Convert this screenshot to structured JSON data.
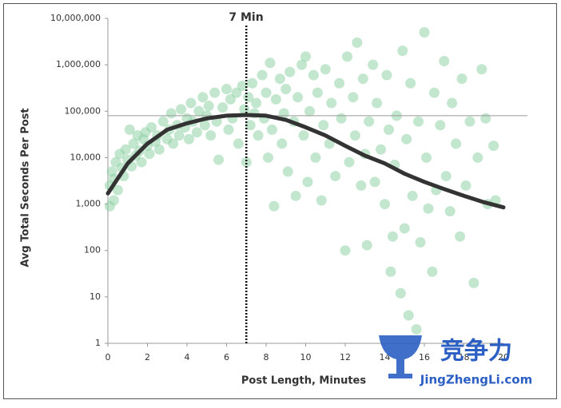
{
  "chart_data": {
    "type": "scatter",
    "xlabel": "Post Length, Minutes",
    "ylabel": "Avg Total Seconds Per Post",
    "log_y": true,
    "xlim": [
      0,
      20
    ],
    "xticks": [
      0,
      2,
      4,
      6,
      8,
      10,
      12,
      14,
      16,
      18,
      20
    ],
    "ylim": [
      1,
      10000000
    ],
    "yticks": [
      1,
      10,
      100,
      {
        "value": 1000,
        "label": "1,000"
      },
      {
        "value": 10000,
        "label": "10,000"
      },
      {
        "value": 100000,
        "label": "100,000"
      },
      {
        "value": 1000000,
        "label": "1,000,000"
      },
      {
        "value": 10000000,
        "label": "10,000,000"
      }
    ],
    "color": "#8fd1a6",
    "x": [
      0.1,
      0.1,
      0.2,
      0.3,
      0.3,
      0.4,
      0.5,
      0.6,
      0.7,
      0.8,
      0.9,
      1.0,
      1.1,
      1.2,
      1.3,
      1.4,
      1.5,
      1.6,
      1.7,
      1.8,
      1.9,
      2.0,
      2.1,
      2.2,
      2.4,
      2.5,
      2.6,
      2.8,
      3.0,
      3.1,
      3.2,
      3.3,
      3.5,
      3.6,
      3.7,
      3.9,
      4.0,
      4.1,
      4.2,
      4.3,
      4.5,
      4.6,
      4.8,
      4.9,
      5.0,
      5.1,
      5.2,
      5.4,
      5.5,
      5.6,
      5.8,
      6.0,
      6.1,
      6.2,
      6.3,
      6.5,
      6.6,
      6.8,
      6.9,
      7.0,
      7.1,
      7.2,
      7.3,
      7.4,
      7.5,
      7.6,
      7.8,
      7.9,
      8.0,
      8.1,
      8.2,
      8.3,
      8.4,
      8.5,
      8.7,
      8.8,
      8.9,
      9.0,
      9.1,
      9.2,
      9.4,
      9.5,
      9.6,
      9.8,
      9.9,
      10.0,
      10.1,
      10.2,
      10.4,
      10.5,
      10.6,
      10.8,
      10.9,
      11.0,
      11.2,
      11.3,
      11.5,
      11.7,
      11.8,
      12.0,
      12.1,
      12.2,
      12.4,
      12.5,
      12.6,
      12.8,
      12.9,
      13.0,
      13.1,
      13.2,
      13.4,
      13.5,
      13.6,
      13.8,
      14.0,
      14.1,
      14.2,
      14.3,
      14.4,
      14.5,
      14.6,
      14.8,
      14.9,
      15.0,
      15.1,
      15.2,
      15.3,
      15.4,
      15.6,
      15.7,
      15.8,
      16.0,
      16.1,
      16.2,
      16.4,
      16.5,
      16.6,
      16.8,
      17.0,
      17.1,
      17.3,
      17.4,
      17.6,
      17.8,
      17.9,
      18.1,
      18.3,
      18.5,
      18.7,
      18.9,
      19.1,
      19.2,
      19.5,
      19.6
    ],
    "values": [
      900,
      2500,
      5000,
      1200,
      3500,
      8000,
      2000,
      12000,
      6000,
      4000,
      15000,
      9000,
      40000,
      6500,
      20000,
      11000,
      30000,
      14000,
      8000,
      25000,
      35000,
      18000,
      12000,
      45000,
      22000,
      30000,
      15000,
      60000,
      25000,
      40000,
      90000,
      20000,
      50000,
      30000,
      110000,
      45000,
      70000,
      25000,
      150000,
      60000,
      35000,
      100000,
      200000,
      50000,
      80000,
      130000,
      30000,
      250000,
      60000,
      9000,
      120000,
      300000,
      40000,
      180000,
      70000,
      250000,
      20000,
      350000,
      110000,
      8000,
      200000,
      50000,
      400000,
      90000,
      150000,
      30000,
      600000,
      70000,
      250000,
      10000,
      1100000,
      40000,
      900,
      180000,
      500000,
      20000,
      90000,
      300000,
      5000,
      700000,
      60000,
      1500,
      200000,
      1000000,
      30000,
      1500000,
      3000,
      100000,
      600000,
      10000,
      250000,
      1200,
      50000,
      800000,
      20000,
      150000,
      4000,
      400000,
      70000,
      100,
      1500000,
      8000,
      200000,
      30000,
      3000000,
      2500,
      500000,
      12000,
      130,
      60000,
      1000000,
      3000,
      150000,
      15000,
      1000,
      600000,
      40000,
      35,
      200,
      7000,
      80000,
      12,
      2000000,
      300,
      25000,
      4,
      400000,
      1500,
      2,
      60000,
      150,
      5000000,
      10000,
      800,
      35,
      250000,
      2000,
      50000,
      1200000,
      4000,
      700,
      150000,
      20000,
      200,
      500000,
      2500,
      60000,
      20,
      10000,
      800000,
      70000,
      1000,
      18000,
      1200
    ],
    "curve": {
      "color": "#333333",
      "x": [
        0,
        1,
        2,
        3,
        4,
        5,
        6,
        7,
        8,
        9,
        10,
        11,
        12,
        13,
        14,
        15,
        16,
        17,
        18,
        19,
        20
      ],
      "values": [
        1700,
        7500,
        20000,
        40000,
        55000,
        70000,
        80000,
        83000,
        80000,
        65000,
        45000,
        30000,
        18000,
        11000,
        7500,
        4500,
        3000,
        2100,
        1500,
        1100,
        850
      ]
    },
    "hline": 80000,
    "vline": 7,
    "vline_label": "7 Min",
    "watermark_title": "竞争力",
    "watermark_url": "JingZhengLi.com"
  }
}
